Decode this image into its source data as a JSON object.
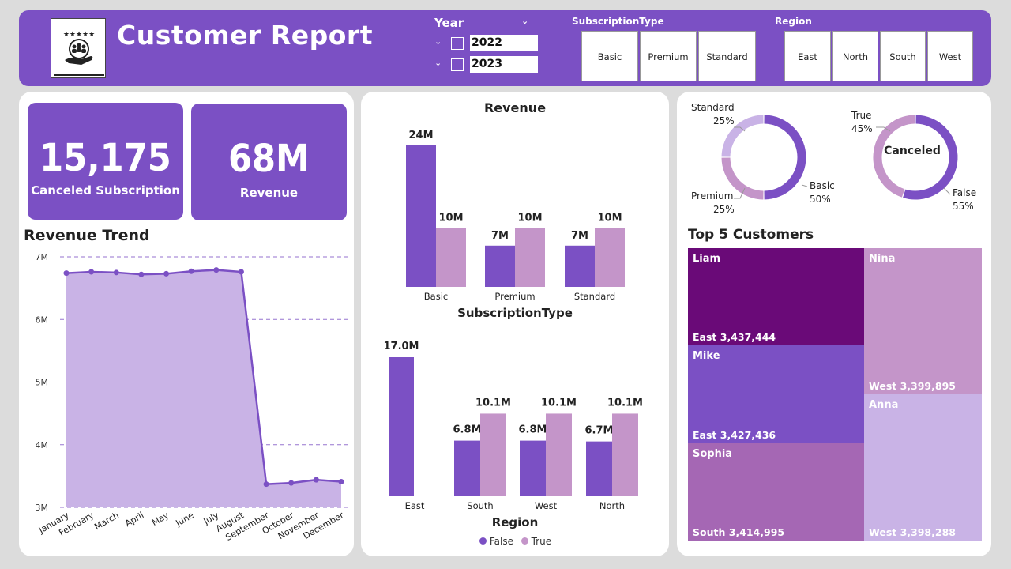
{
  "header": {
    "title": "Customer Report",
    "year_label": "Year",
    "years": [
      "2022",
      "2023"
    ],
    "subscription_label": "SubscriptionType",
    "subscription_tiles": [
      "Basic",
      "Premium",
      "Standard"
    ],
    "region_label": "Region",
    "region_tiles": [
      "East",
      "North",
      "South",
      "West"
    ]
  },
  "kpis": {
    "canceled_value": "15,175",
    "canceled_label": "Canceled Subscription",
    "revenue_value": "68M",
    "revenue_label": "Revenue"
  },
  "trend": {
    "title": "Revenue Trend"
  },
  "revenue_panel": {
    "title": "Revenue",
    "xlabel": "SubscriptionType",
    "region_xlabel": "Region"
  },
  "legend": {
    "false_label": "False",
    "true_label": "True"
  },
  "donut1": {
    "standard": "Standard",
    "standard_pct": "25%",
    "premium": "Premium",
    "premium_pct": "25%",
    "basic": "Basic",
    "basic_pct": "50%"
  },
  "donut2": {
    "center": "Canceled",
    "true": "True",
    "true_pct": "45%",
    "false": "False",
    "false_pct": "55%"
  },
  "customers": {
    "title": "Top 5 Customers",
    "items": [
      {
        "name": "Liam",
        "detail": "East 3,437,444"
      },
      {
        "name": "Mike",
        "detail": "East 3,427,436"
      },
      {
        "name": "Sophia",
        "detail": "South 3,414,995"
      },
      {
        "name": "Nina",
        "detail": "West 3,399,895"
      },
      {
        "name": "Anna",
        "detail": "West 3,398,288"
      }
    ]
  },
  "colors": {
    "purple": "#7b50c4",
    "light_purple": "#c495c9",
    "dark_purple": "#6a0a78",
    "mid_purple": "#a567b4",
    "lavender": "#c9b3e6"
  },
  "chart_data": [
    {
      "type": "area",
      "title": "Revenue Trend",
      "categories": [
        "January",
        "February",
        "March",
        "April",
        "May",
        "June",
        "July",
        "August",
        "September",
        "October",
        "November",
        "December"
      ],
      "values": [
        6.74,
        6.76,
        6.75,
        6.72,
        6.73,
        6.77,
        6.79,
        6.76,
        3.37,
        3.39,
        3.44,
        3.41
      ],
      "unit": "M",
      "yticks": [
        "3M",
        "4M",
        "5M",
        "6M",
        "7M"
      ],
      "ylim": [
        3,
        7
      ],
      "grid": true
    },
    {
      "type": "bar",
      "title": "Revenue",
      "xlabel": "SubscriptionType",
      "categories": [
        "Basic",
        "Premium",
        "Standard"
      ],
      "series": [
        {
          "name": "False",
          "values": [
            24,
            7,
            7
          ],
          "labels": [
            "24M",
            "7M",
            "7M"
          ]
        },
        {
          "name": "True",
          "values": [
            10,
            10,
            10
          ],
          "labels": [
            "10M",
            "10M",
            "10M"
          ]
        }
      ]
    },
    {
      "type": "bar",
      "xlabel": "Region",
      "categories": [
        "East",
        "South",
        "West",
        "North"
      ],
      "series": [
        {
          "name": "False",
          "values": [
            17.0,
            6.8,
            6.8,
            6.7
          ],
          "labels": [
            "17.0M",
            "6.8M",
            "6.8M",
            "6.7M"
          ]
        },
        {
          "name": "True",
          "values": [
            0,
            10.1,
            10.1,
            10.1
          ],
          "labels": [
            "",
            "10.1M",
            "10.1M",
            "10.1M"
          ]
        }
      ],
      "legend": "bottom"
    },
    {
      "type": "pie",
      "categories": [
        "Basic",
        "Premium",
        "Standard"
      ],
      "values": [
        50,
        25,
        25
      ]
    },
    {
      "type": "pie",
      "title": "Canceled",
      "categories": [
        "False",
        "True"
      ],
      "values": [
        55,
        45
      ]
    }
  ]
}
